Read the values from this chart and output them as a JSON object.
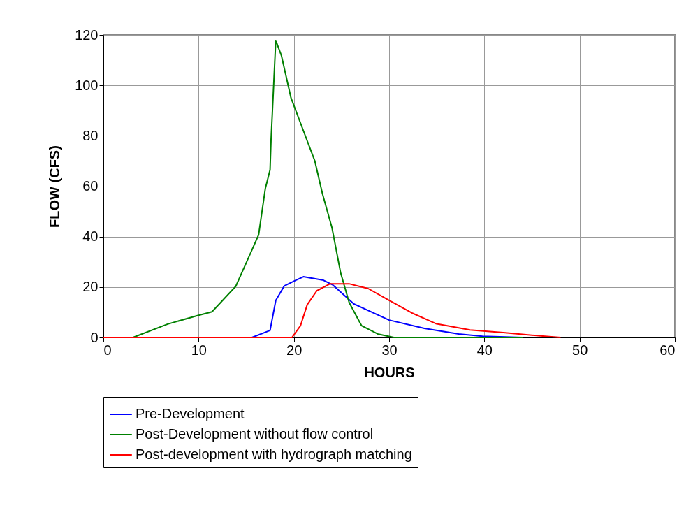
{
  "chart_data": {
    "type": "line",
    "xlabel": "HOURS",
    "ylabel": "FLOW (CFS)",
    "xlim": [
      0,
      60
    ],
    "xticks": [
      0,
      10,
      20,
      30,
      40,
      50,
      60
    ],
    "ylim": [
      0,
      120
    ],
    "yticks": [
      0,
      20,
      40,
      60,
      80,
      100,
      120
    ],
    "grid": true,
    "legend": "bottom",
    "marker": "none",
    "line_style": "solid",
    "series": [
      {
        "name": "Pre-Development",
        "color": "#0000ff",
        "x": [
          0,
          15.6,
          17.5,
          18.1,
          19.0,
          20.2,
          21.0,
          23.1,
          24.1,
          26.3,
          30.0,
          33.7,
          37.3,
          39.8,
          44
        ],
        "values": [
          0,
          0,
          2.8,
          14.7,
          20.5,
          22.7,
          24.1,
          22.7,
          20.8,
          13.3,
          6.9,
          3.6,
          1.4,
          0.5,
          0
        ]
      },
      {
        "name": "Post-Development without flow control",
        "color": "#008000",
        "x": [
          0,
          3.1,
          6.75,
          10.0,
          11.4,
          13.9,
          15.0,
          16.3,
          17.0,
          17.5,
          17.6,
          18.1,
          18.7,
          19.7,
          20.9,
          22.2,
          23.0,
          24.0,
          24.9,
          25.8,
          27.1,
          28.8,
          30.5,
          44
        ],
        "values": [
          0,
          0,
          5.3,
          8.8,
          10.2,
          20.3,
          29.6,
          40.7,
          59,
          66.5,
          78,
          117.8,
          111.7,
          95,
          83,
          70,
          57,
          43.5,
          25.8,
          13.9,
          4.7,
          1.4,
          0,
          0
        ]
      },
      {
        "name": "Post-development with hydrograph matching",
        "color": "#ff0000",
        "x": [
          0,
          19.8,
          20.7,
          21.4,
          22.4,
          23.8,
          25.8,
          27.8,
          30.0,
          32.4,
          34.9,
          38.5,
          42.2,
          45.9,
          48.0
        ],
        "values": [
          0,
          0,
          4.7,
          13,
          18.5,
          21.3,
          21.3,
          19.4,
          14.7,
          9.7,
          5.5,
          3.0,
          1.9,
          0.6,
          0
        ]
      }
    ]
  }
}
